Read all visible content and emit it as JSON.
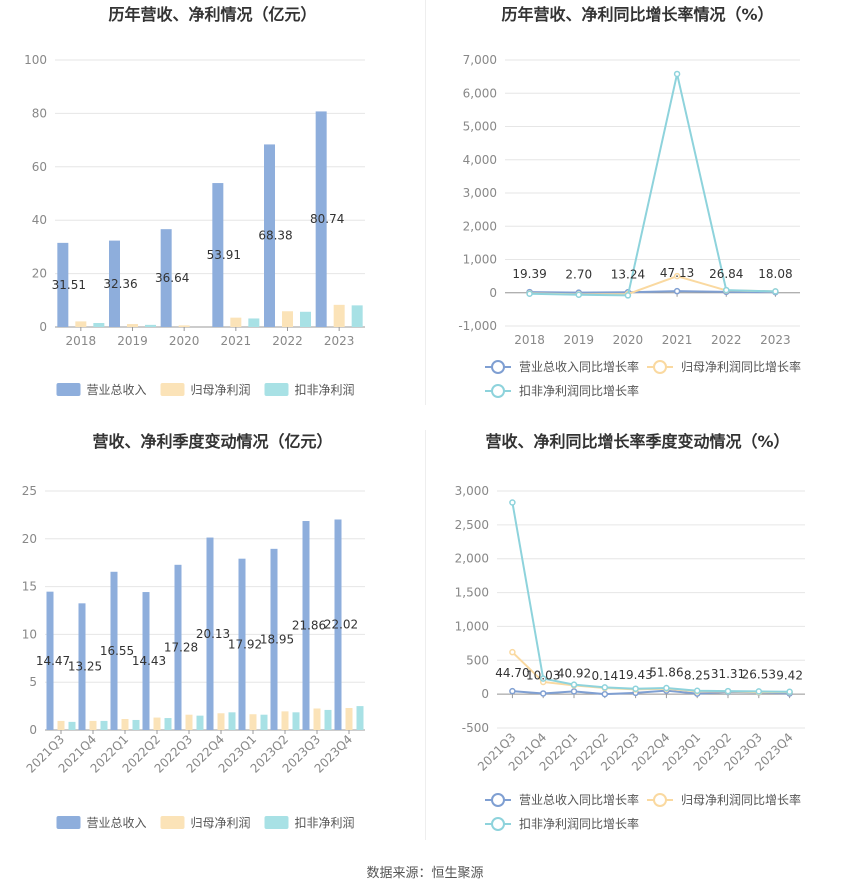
{
  "source_text": "数据来源：恒生聚源",
  "chart_data": [
    {
      "type": "bar",
      "title": "历年营收、净利情况（亿元）",
      "categories": [
        "2018",
        "2019",
        "2020",
        "2021",
        "2022",
        "2023"
      ],
      "ylim": [
        0,
        100
      ],
      "yticks": [
        0,
        20,
        40,
        60,
        80,
        100
      ],
      "series": [
        {
          "name": "营业总收入",
          "color": "#8eaedc",
          "values": [
            31.51,
            32.36,
            36.64,
            53.91,
            68.38,
            80.74
          ],
          "labels": [
            "31.51",
            "32.36",
            "36.64",
            "53.91",
            "68.38",
            "80.74"
          ]
        },
        {
          "name": "归母净利润",
          "color": "#fbe3b8",
          "values": [
            2.1,
            1.1,
            0.6,
            3.5,
            5.9,
            8.3
          ]
        },
        {
          "name": "扣非净利润",
          "color": "#a8e1e5",
          "values": [
            1.5,
            0.8,
            0.0,
            3.2,
            5.7,
            8.1
          ]
        }
      ],
      "legend": "bottom",
      "grid": true
    },
    {
      "type": "line",
      "title": "历年营收、净利同比增长率情况（%）",
      "categories": [
        "2018",
        "2019",
        "2020",
        "2021",
        "2022",
        "2023"
      ],
      "ylim": [
        -1000,
        7000
      ],
      "yticks": [
        -1000,
        0,
        1000,
        2000,
        3000,
        4000,
        5000,
        6000,
        7000
      ],
      "ytick_labels": [
        "-1,000",
        "0",
        "1,000",
        "2,000",
        "3,000",
        "4,000",
        "5,000",
        "6,000",
        "7,000"
      ],
      "series": [
        {
          "name": "营业总收入同比增长率",
          "color": "#7f9fd2",
          "values": [
            19.39,
            2.7,
            13.24,
            47.13,
            26.84,
            18.08
          ],
          "labels": [
            "19.39",
            "2.70",
            "13.24",
            "47.13",
            "26.84",
            "18.08"
          ]
        },
        {
          "name": "归母净利润同比增长率",
          "color": "#fad9a0",
          "values": [
            -20,
            -50,
            -40,
            500,
            70,
            40
          ]
        },
        {
          "name": "扣非净利润同比增长率",
          "color": "#8ed3dc",
          "values": [
            -30,
            -60,
            -80,
            6580,
            80,
            40
          ]
        }
      ],
      "legend": "bottom",
      "grid": true
    },
    {
      "type": "bar",
      "title": "营收、净利季度变动情况（亿元）",
      "categories": [
        "2021Q3",
        "2021Q4",
        "2022Q1",
        "2022Q2",
        "2022Q3",
        "2022Q4",
        "2023Q1",
        "2023Q2",
        "2023Q3",
        "2023Q4"
      ],
      "ylim": [
        0,
        25
      ],
      "yticks": [
        0,
        5,
        10,
        15,
        20,
        25
      ],
      "series": [
        {
          "name": "营业总收入",
          "color": "#8eaedc",
          "values": [
            14.47,
            13.25,
            16.55,
            14.43,
            17.28,
            20.13,
            17.92,
            18.95,
            21.86,
            22.02
          ],
          "labels": [
            "14.47",
            "13.25",
            "16.55",
            "14.43",
            "17.28",
            "20.13",
            "17.92",
            "18.95",
            "21.86",
            "22.02"
          ]
        },
        {
          "name": "归母净利润",
          "color": "#fbe3b8",
          "values": [
            0.95,
            0.95,
            1.15,
            1.3,
            1.6,
            1.75,
            1.65,
            1.95,
            2.25,
            2.3
          ]
        },
        {
          "name": "扣非净利润",
          "color": "#a8e1e5",
          "values": [
            0.85,
            0.95,
            1.05,
            1.25,
            1.5,
            1.85,
            1.6,
            1.85,
            2.1,
            2.5
          ]
        }
      ],
      "legend": "bottom",
      "grid": true
    },
    {
      "type": "line",
      "title": "营收、净利同比增长率季度变动情况（%）",
      "categories": [
        "2021Q3",
        "2021Q4",
        "2022Q1",
        "2022Q2",
        "2022Q3",
        "2022Q4",
        "2023Q1",
        "2023Q2",
        "2023Q3",
        "2023Q4"
      ],
      "ylim": [
        -500,
        3000
      ],
      "yticks": [
        -500,
        0,
        500,
        1000,
        1500,
        2000,
        2500,
        3000
      ],
      "ytick_labels": [
        "-500",
        "0",
        "500",
        "1,000",
        "1,500",
        "2,000",
        "2,500",
        "3,000"
      ],
      "series": [
        {
          "name": "营业总收入同比增长率",
          "color": "#7f9fd2",
          "values": [
            44.7,
            10.03,
            40.92,
            0.14,
            19.43,
            51.86,
            8.25,
            31.31,
            26.53,
            9.42
          ],
          "labels": [
            "44.70",
            "10.03",
            "40.92",
            "0.14",
            "19.43",
            "51.86",
            "8.25",
            "31.31",
            "26.53",
            "9.42"
          ]
        },
        {
          "name": "归母净利润同比增长率",
          "color": "#fad9a0",
          "values": [
            620,
            180,
            130,
            90,
            70,
            80,
            40,
            40,
            30,
            30
          ]
        },
        {
          "name": "扣非净利润同比增长率",
          "color": "#8ed3dc",
          "values": [
            2830,
            230,
            140,
            100,
            80,
            90,
            50,
            45,
            40,
            35
          ]
        }
      ],
      "legend": "bottom",
      "grid": true
    }
  ]
}
